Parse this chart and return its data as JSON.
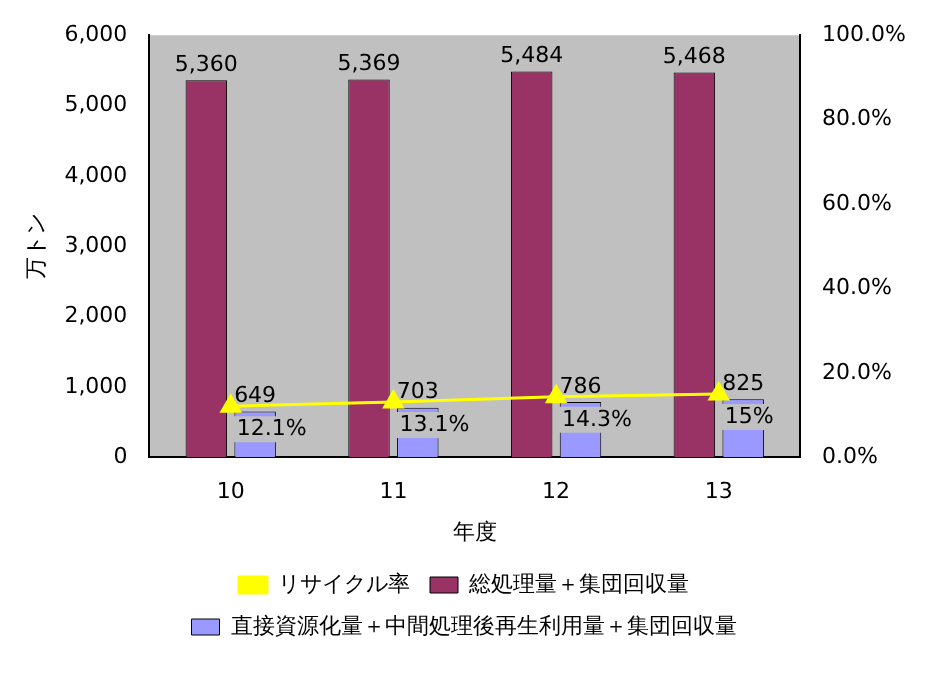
{
  "chart_data": {
    "type": "bar",
    "xlabel": "年度",
    "ylabel": "万トン",
    "categories": [
      "10",
      "11",
      "12",
      "13"
    ],
    "series": [
      {
        "name": "総処理量＋集団回収量",
        "color": "#993366",
        "values": [
          5360,
          5369,
          5484,
          5468
        ],
        "value_labels": [
          "5,360",
          "5,369",
          "5,484",
          "5,468"
        ]
      },
      {
        "name": "直接資源化量＋中間処理後再生利用量＋集団回収量",
        "color": "#9999ff",
        "values": [
          649,
          703,
          786,
          825
        ],
        "value_labels": [
          "649",
          "703",
          "786",
          "825"
        ]
      },
      {
        "name": "リサイクル率",
        "type": "line",
        "axis": "y2",
        "color": "#ffff00",
        "marker": "triangle",
        "values": [
          12.1,
          13.1,
          14.3,
          15
        ],
        "value_labels": [
          "12.1%",
          "13.1%",
          "14.3%",
          "15%"
        ]
      }
    ],
    "ylim": [
      0,
      6000
    ],
    "yticks": [
      0,
      {
        "value": 1000,
        "label": "1,000"
      },
      {
        "value": 2000,
        "label": "2,000"
      },
      {
        "value": 3000,
        "label": "3,000"
      },
      {
        "value": 4000,
        "label": "4,000"
      },
      {
        "value": 5000,
        "label": "5,000"
      },
      {
        "value": 6000,
        "label": "6,000"
      }
    ],
    "y2lim": [
      0,
      100
    ],
    "y2ticks": [
      {
        "value": 0,
        "label": "0.0%"
      },
      {
        "value": 20,
        "label": "20.0%"
      },
      {
        "value": 40,
        "label": "40.0%"
      },
      {
        "value": 60,
        "label": "60.0%"
      },
      {
        "value": 80,
        "label": "80.0%"
      },
      {
        "value": 100,
        "label": "100.0%"
      }
    ],
    "legend": "bottom"
  }
}
